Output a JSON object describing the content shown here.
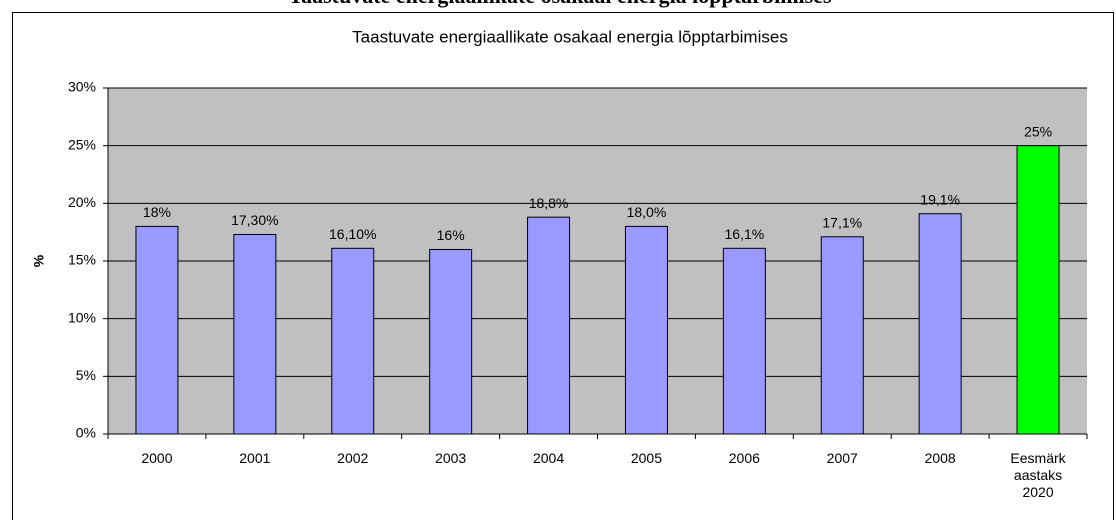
{
  "chart_data": {
    "type": "bar",
    "heading": "Taastuvate energiaallikate osakaal energia lõpptarbimises",
    "title": "Taastuvate energiaallikate osakaal energia lõpptarbimises",
    "ylabel": "%",
    "categories": [
      "2000",
      "2001",
      "2002",
      "2003",
      "2004",
      "2005",
      "2006",
      "2007",
      "2008",
      "Eesmärk aastaks 2020"
    ],
    "values": [
      18,
      17.3,
      16.1,
      16,
      18.8,
      18.0,
      16.1,
      17.1,
      19.1,
      25
    ],
    "value_labels": [
      "18%",
      "17,30%",
      "16,10%",
      "16%",
      "18,8%",
      "18,0%",
      "16,1%",
      "17,1%",
      "19,1%",
      "25%"
    ],
    "colors": [
      "#9999ff",
      "#9999ff",
      "#9999ff",
      "#9999ff",
      "#9999ff",
      "#9999ff",
      "#9999ff",
      "#9999ff",
      "#9999ff",
      "#00ff00"
    ],
    "ylim": [
      0,
      30
    ],
    "yticks": [
      {
        "value": 0,
        "label": "0%"
      },
      {
        "value": 5,
        "label": "5%"
      },
      {
        "value": 10,
        "label": "10%"
      },
      {
        "value": 15,
        "label": "15%"
      },
      {
        "value": 20,
        "label": "20%"
      },
      {
        "value": 25,
        "label": "25%"
      },
      {
        "value": 30,
        "label": "30%"
      }
    ],
    "grid": true
  }
}
